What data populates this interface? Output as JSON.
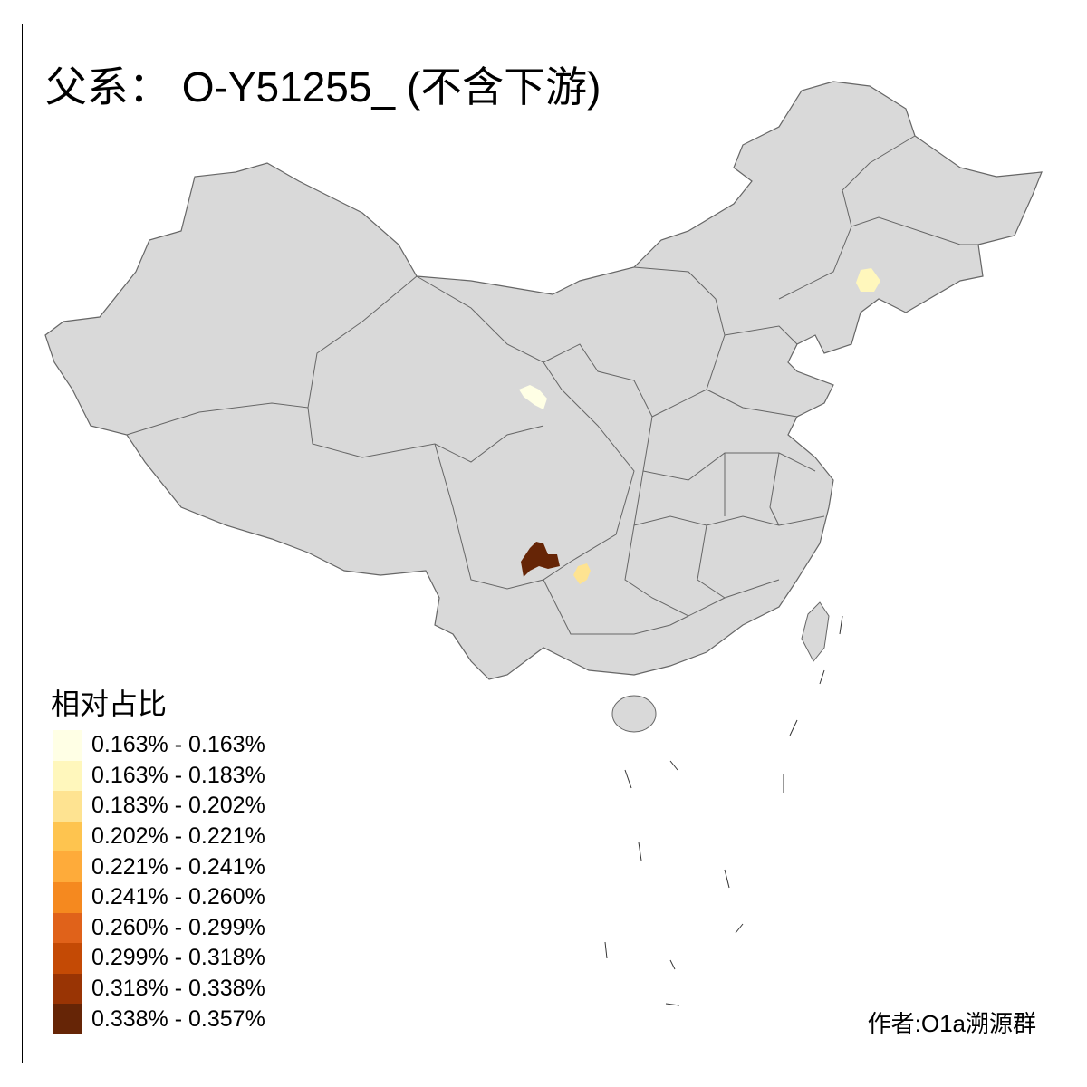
{
  "title": "父系： O-Y51255_ (不含下游)",
  "legend": {
    "title": "相对占比",
    "items": [
      {
        "label": "0.163% - 0.163%",
        "color": "#FFFFE5"
      },
      {
        "label": "0.163% - 0.183%",
        "color": "#FFF7BC"
      },
      {
        "label": "0.183% - 0.202%",
        "color": "#FEE391"
      },
      {
        "label": "0.202% - 0.221%",
        "color": "#FEC44F"
      },
      {
        "label": "0.221% - 0.241%",
        "color": "#FEAB3A"
      },
      {
        "label": "0.241% - 0.260%",
        "color": "#F5891F"
      },
      {
        "label": "0.260% - 0.299%",
        "color": "#E0621A"
      },
      {
        "label": "0.299% - 0.318%",
        "color": "#C44A05"
      },
      {
        "label": "0.318% - 0.338%",
        "color": "#993404"
      },
      {
        "label": "0.338% - 0.357%",
        "color": "#662506"
      }
    ]
  },
  "map": {
    "base_fill": "#D9D9D9",
    "border_color": "#666666",
    "highlighted_regions": [
      {
        "area": "southwest (Yunnan-Guizhou border)",
        "bin": 9,
        "color": "#662506"
      },
      {
        "area": "Guizhou",
        "bin": 2,
        "color": "#FEE391"
      },
      {
        "area": "Gansu-Qinghai",
        "bin": 0,
        "color": "#FFFFE5"
      },
      {
        "area": "Liaoning-Jilin",
        "bin": 1,
        "color": "#FFF7BC"
      }
    ]
  },
  "author": "作者:O1a溯源群"
}
